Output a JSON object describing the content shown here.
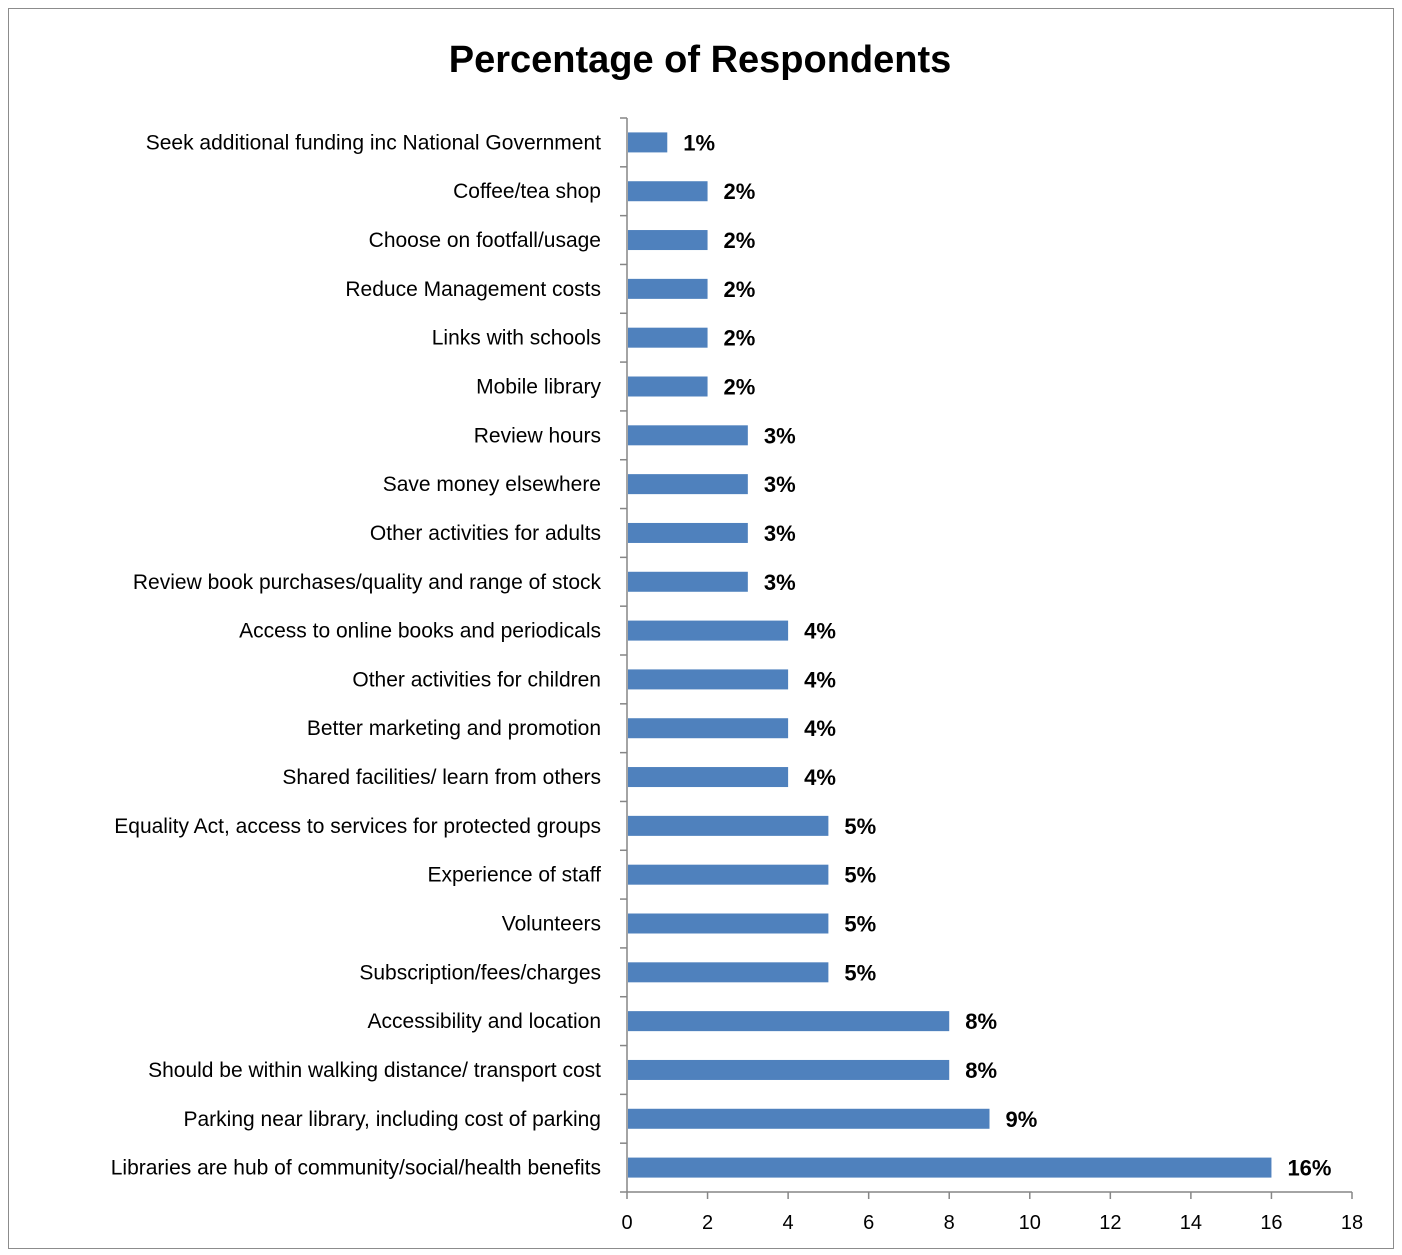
{
  "chart_data": {
    "type": "bar",
    "orientation": "horizontal",
    "title": "Percentage of Respondents",
    "xlabel": "",
    "ylabel": "",
    "xlim": [
      0,
      18
    ],
    "x_ticks": [
      0,
      2,
      4,
      6,
      8,
      10,
      12,
      14,
      16,
      18
    ],
    "grid": false,
    "legend": "none",
    "bar_color": "#4F81BD",
    "categories": [
      "Seek additional funding inc National  Government",
      "Coffee/tea shop",
      "Choose on footfall/usage",
      "Reduce Management costs",
      "Links with schools",
      "Mobile library",
      "Review hours",
      "Save money elsewhere",
      "Other activities for adults",
      "Review book purchases/quality and range of stock",
      "Access to online books and periodicals",
      "Other activities for children",
      "Better marketing and promotion",
      "Shared facilities/ learn from others",
      "Equality Act, access to services for protected groups",
      "Experience of staff",
      "Volunteers",
      "Subscription/fees/charges",
      "Accessibility and location",
      "Should be within walking distance/ transport cost",
      "Parking near library, including cost of parking",
      "Libraries are hub of community/social/health  benefits"
    ],
    "values": [
      1,
      2,
      2,
      2,
      2,
      2,
      3,
      3,
      3,
      3,
      4,
      4,
      4,
      4,
      5,
      5,
      5,
      5,
      8,
      8,
      9,
      16
    ],
    "data_labels": [
      "1%",
      "2%",
      "2%",
      "2%",
      "2%",
      "2%",
      "3%",
      "3%",
      "3%",
      "3%",
      "4%",
      "4%",
      "4%",
      "4%",
      "5%",
      "5%",
      "5%",
      "5%",
      "8%",
      "8%",
      "9%",
      "16%"
    ]
  }
}
